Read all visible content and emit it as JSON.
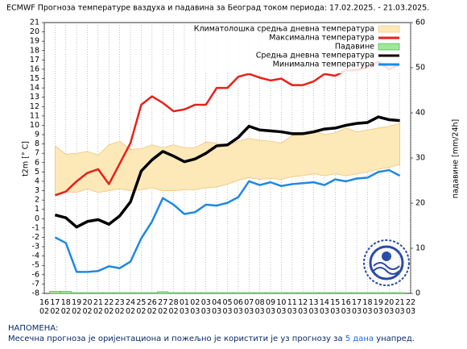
{
  "chart_data": {
    "type": "line",
    "title": "ECMWF Прогноза температуре ваздуха и падавина за Београд током периода: 17.02.2025. - 21.03.2025.",
    "ylabel": "t2m [° C]",
    "y2label": "падавине [mm/24h]",
    "categories": [
      [
        "16",
        "02"
      ],
      [
        "17",
        "02"
      ],
      [
        "18",
        "02"
      ],
      [
        "19",
        "02"
      ],
      [
        "20",
        "02"
      ],
      [
        "21",
        "02"
      ],
      [
        "22",
        "02"
      ],
      [
        "23",
        "02"
      ],
      [
        "24",
        "02"
      ],
      [
        "25",
        "02"
      ],
      [
        "26",
        "02"
      ],
      [
        "27",
        "02"
      ],
      [
        "28",
        "02"
      ],
      [
        "01",
        "03"
      ],
      [
        "02",
        "03"
      ],
      [
        "03",
        "03"
      ],
      [
        "04",
        "03"
      ],
      [
        "05",
        "03"
      ],
      [
        "06",
        "03"
      ],
      [
        "07",
        "03"
      ],
      [
        "08",
        "03"
      ],
      [
        "09",
        "03"
      ],
      [
        "10",
        "03"
      ],
      [
        "11",
        "03"
      ],
      [
        "12",
        "03"
      ],
      [
        "13",
        "03"
      ],
      [
        "14",
        "03"
      ],
      [
        "15",
        "03"
      ],
      [
        "16",
        "03"
      ],
      [
        "17",
        "03"
      ],
      [
        "18",
        "03"
      ],
      [
        "19",
        "03"
      ],
      [
        "20",
        "03"
      ],
      [
        "21",
        "03"
      ],
      [
        "22",
        "03"
      ]
    ],
    "ylim": [
      -8,
      21
    ],
    "yticks": [
      -8,
      -7,
      -6,
      -5,
      -4,
      -3,
      -2,
      -1,
      0,
      1,
      2,
      3,
      4,
      5,
      6,
      7,
      8,
      9,
      10,
      11,
      12,
      13,
      14,
      15,
      16,
      17,
      18,
      19,
      20,
      21
    ],
    "y2lim": [
      0,
      60
    ],
    "y2ticks": [
      0,
      10,
      20,
      30,
      40,
      50,
      60
    ],
    "grid": "x",
    "legend": "top-right",
    "band": {
      "name": "Климатолошка средња дневна температура",
      "color": "#fde9b8",
      "edge": "#f2c27a",
      "lower": [
        null,
        2.6,
        2.9,
        2.8,
        3.2,
        2.8,
        3.0,
        3.2,
        3.0,
        3.1,
        3.3,
        3.0,
        3.0,
        3.1,
        3.1,
        3.3,
        3.4,
        3.7,
        4.1,
        4.4,
        4.2,
        4.3,
        4.2,
        4.5,
        4.6,
        4.8,
        4.6,
        4.8,
        4.6,
        4.8,
        5.0,
        5.3,
        5.5,
        5.8,
        null
      ],
      "upper": [
        null,
        7.8,
        6.9,
        7.0,
        7.2,
        6.8,
        7.9,
        8.3,
        7.4,
        7.5,
        7.9,
        7.6,
        7.9,
        7.6,
        7.6,
        8.2,
        8.1,
        7.9,
        8.3,
        8.6,
        8.4,
        8.3,
        8.1,
        8.9,
        9.0,
        9.4,
        9.0,
        9.2,
        9.7,
        9.3,
        9.5,
        9.7,
        9.9,
        10.2,
        null
      ]
    },
    "series": [
      {
        "name": "Максимална температура",
        "color": "#e8201a",
        "type": "line",
        "values": [
          null,
          2.5,
          2.9,
          4.0,
          4.9,
          5.3,
          3.7,
          5.9,
          8.1,
          12.2,
          13.1,
          12.4,
          11.5,
          11.7,
          12.2,
          12.2,
          14.0,
          14.0,
          15.2,
          15.5,
          15.1,
          14.8,
          15.0,
          14.3,
          14.3,
          14.7,
          15.5,
          15.3,
          15.9,
          15.9,
          16.2,
          16.8,
          16.0,
          16.5,
          null
        ]
      },
      {
        "name": "Падавине",
        "color": "#9ee89a",
        "type": "bar",
        "axis": "y2",
        "values": [
          null,
          0.3,
          0.3,
          0,
          0,
          0,
          0,
          0,
          0,
          0,
          0,
          0.2,
          0,
          0,
          0,
          0,
          0,
          0,
          0,
          0,
          0,
          0,
          0,
          0,
          0,
          0,
          0,
          0,
          0,
          0,
          0,
          0,
          0,
          0,
          null
        ]
      },
      {
        "name": "Средња дневна температура",
        "color": "#000000",
        "type": "line",
        "values": [
          null,
          0.4,
          0.1,
          -0.9,
          -0.3,
          -0.1,
          -0.6,
          0.3,
          1.8,
          5.1,
          6.3,
          7.2,
          6.7,
          6.1,
          6.4,
          7.0,
          7.8,
          7.9,
          8.7,
          9.9,
          9.5,
          9.4,
          9.3,
          9.1,
          9.1,
          9.3,
          9.6,
          9.7,
          10.0,
          10.2,
          10.3,
          10.9,
          10.6,
          10.5,
          null
        ]
      },
      {
        "name": "Минимална температура",
        "color": "#1e88e5",
        "type": "line",
        "values": [
          null,
          -2.0,
          -2.6,
          -5.7,
          -5.7,
          -5.6,
          -5.1,
          -5.3,
          -4.6,
          -2.1,
          -0.3,
          2.2,
          1.5,
          0.5,
          0.7,
          1.5,
          1.4,
          1.7,
          2.3,
          4.0,
          3.6,
          3.9,
          3.5,
          3.7,
          3.8,
          3.9,
          3.6,
          4.2,
          4.0,
          4.3,
          4.4,
          5.0,
          5.2,
          4.6,
          null
        ]
      }
    ]
  },
  "note": {
    "heading": "НАПОМЕНА:",
    "text_before": "Месечна прогноза је оријентациона и пожељно је користити је уз прогнозу за",
    "highlight": "5 дана",
    "text_after": "унапред."
  }
}
